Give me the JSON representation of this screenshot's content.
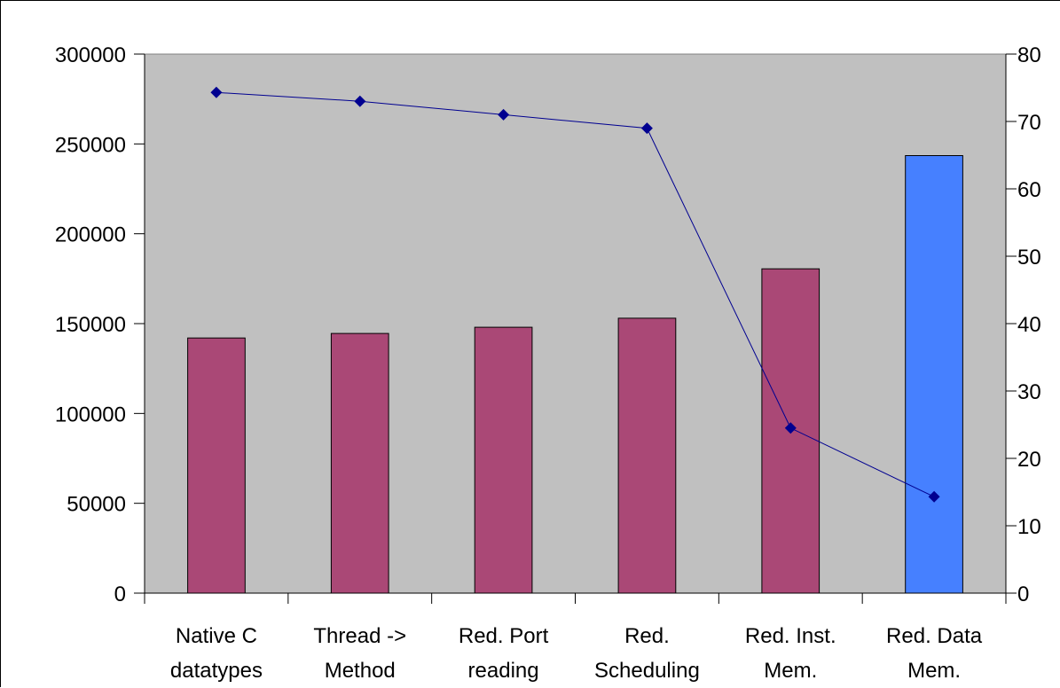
{
  "chart_data": {
    "type": "bar",
    "categories": [
      [
        "Native C",
        "datatypes"
      ],
      [
        "Thread ->",
        "Method"
      ],
      [
        "Red. Port",
        "reading"
      ],
      [
        "Red.",
        "Scheduling"
      ],
      [
        "Red. Inst.",
        "Mem."
      ],
      [
        "Red. Data",
        "Mem."
      ]
    ],
    "series": [
      {
        "type": "bar",
        "axis": "left",
        "values": [
          142000,
          144500,
          148000,
          153000,
          180500,
          243500
        ],
        "colors": [
          "#aa4876",
          "#aa4876",
          "#aa4876",
          "#aa4876",
          "#aa4876",
          "#4680ff"
        ]
      },
      {
        "type": "line",
        "axis": "right",
        "values": [
          74.3,
          73,
          71,
          69,
          24.5,
          14.3
        ],
        "color": "#000090"
      }
    ],
    "ylim": [
      0,
      300000
    ],
    "y2lim": [
      0,
      80
    ],
    "yticks": [
      "0",
      "50000",
      "100000",
      "150000",
      "200000",
      "250000",
      "300000"
    ],
    "y2ticks": [
      "0",
      "10",
      "20",
      "30",
      "40",
      "50",
      "60",
      "70",
      "80"
    ],
    "title": "",
    "xlabel": "",
    "ylabel": "",
    "y2label": "",
    "grid": false,
    "legend": "none",
    "plot_background": "#c0c0c0"
  }
}
